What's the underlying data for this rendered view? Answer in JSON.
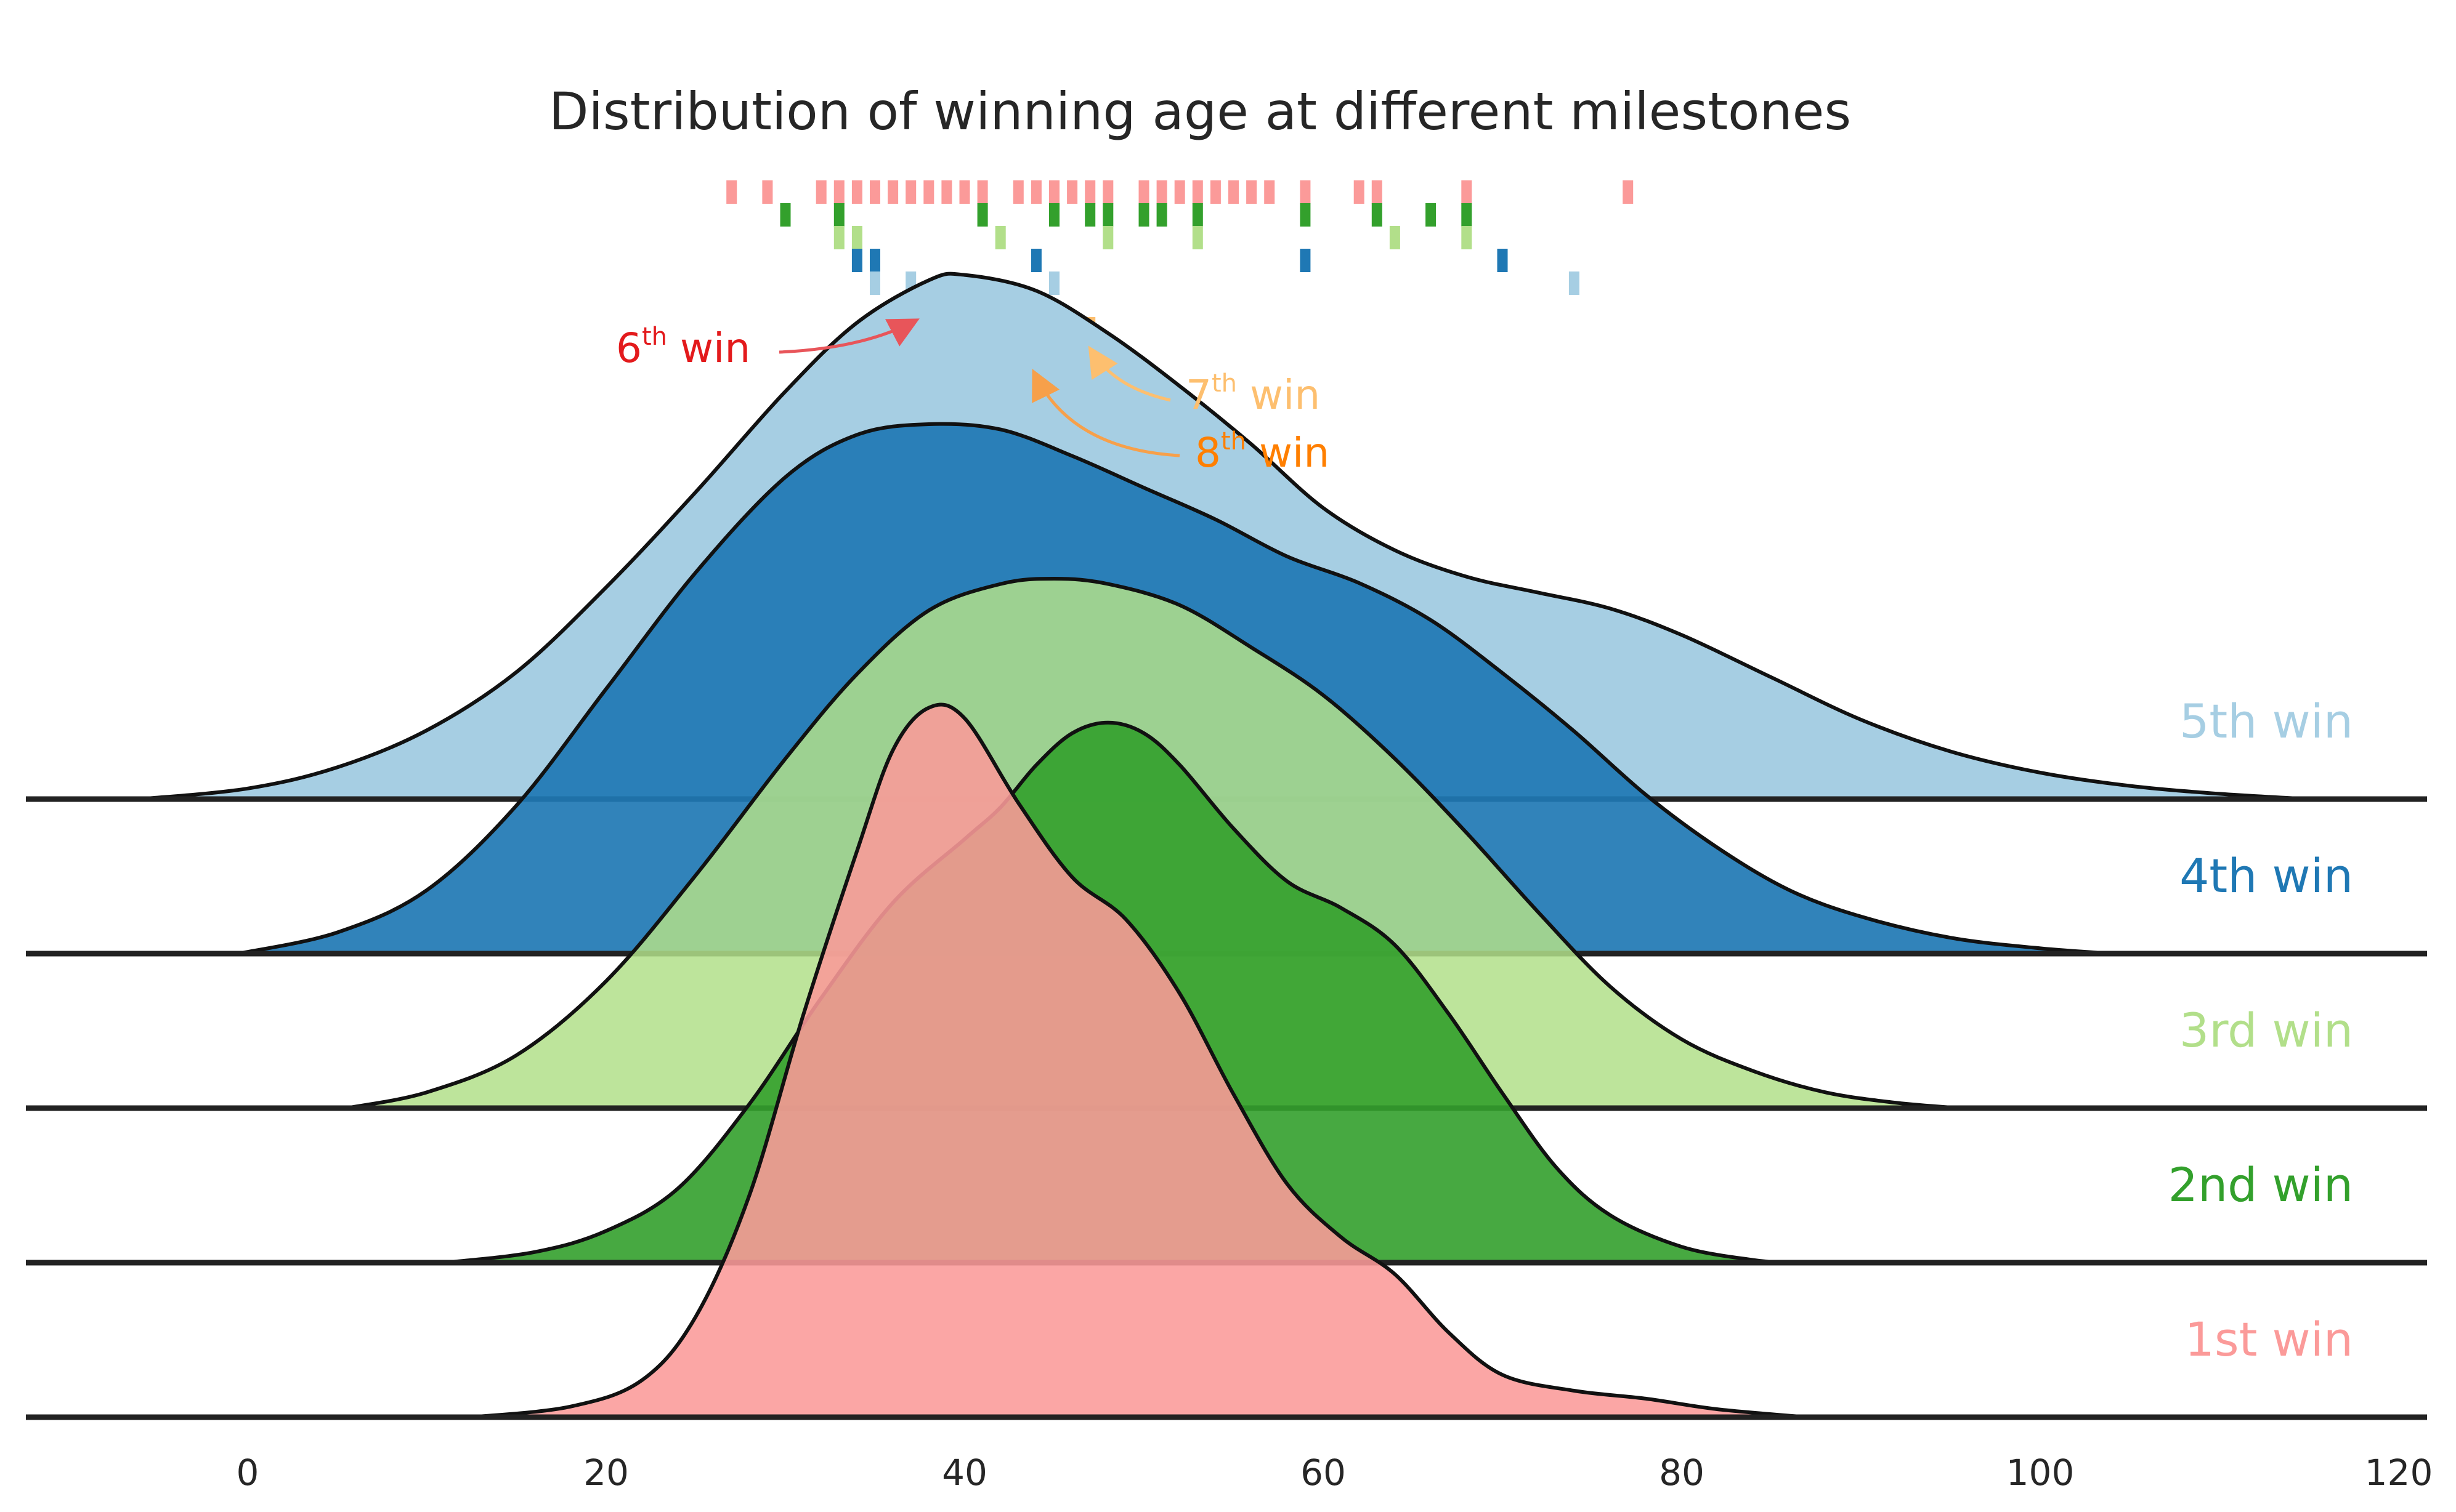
{
  "chart_data": {
    "type": "ridgeline",
    "title": "Distribution of winning age at different milestones",
    "xlim": [
      -12,
      120
    ],
    "xticks": [
      0,
      20,
      40,
      60,
      80,
      100,
      120
    ],
    "xtick_labels": [
      "0",
      "20",
      "40",
      "60",
      "80",
      "100",
      "120"
    ],
    "grid": false,
    "series": [
      {
        "name": "5th win",
        "color": "#a6cee3",
        "curve": [
          [
            -6,
            0.0
          ],
          [
            0,
            0.02
          ],
          [
            5,
            0.06
          ],
          [
            10,
            0.13
          ],
          [
            15,
            0.24
          ],
          [
            20,
            0.4
          ],
          [
            25,
            0.58
          ],
          [
            30,
            0.77
          ],
          [
            34,
            0.9
          ],
          [
            38,
            0.98
          ],
          [
            40,
            0.99
          ],
          [
            44,
            0.96
          ],
          [
            48,
            0.88
          ],
          [
            52,
            0.78
          ],
          [
            56,
            0.67
          ],
          [
            60,
            0.55
          ],
          [
            64,
            0.47
          ],
          [
            68,
            0.42
          ],
          [
            72,
            0.39
          ],
          [
            76,
            0.36
          ],
          [
            80,
            0.31
          ],
          [
            85,
            0.23
          ],
          [
            90,
            0.15
          ],
          [
            95,
            0.09
          ],
          [
            100,
            0.05
          ],
          [
            105,
            0.025
          ],
          [
            110,
            0.01
          ],
          [
            115,
            0.0
          ]
        ]
      },
      {
        "name": "4th win",
        "color": "#1f78b4",
        "curve": [
          [
            -0.5,
            0.0
          ],
          [
            5,
            0.04
          ],
          [
            10,
            0.12
          ],
          [
            15,
            0.28
          ],
          [
            20,
            0.5
          ],
          [
            25,
            0.72
          ],
          [
            30,
            0.9
          ],
          [
            34,
            0.98
          ],
          [
            38,
            1.0
          ],
          [
            42,
            0.99
          ],
          [
            46,
            0.94
          ],
          [
            50,
            0.88
          ],
          [
            54,
            0.82
          ],
          [
            58,
            0.75
          ],
          [
            62,
            0.7
          ],
          [
            66,
            0.63
          ],
          [
            70,
            0.53
          ],
          [
            74,
            0.42
          ],
          [
            78,
            0.3
          ],
          [
            82,
            0.2
          ],
          [
            86,
            0.12
          ],
          [
            90,
            0.07
          ],
          [
            95,
            0.03
          ],
          [
            100,
            0.01
          ],
          [
            104,
            0.0
          ]
        ]
      },
      {
        "name": "3rd win",
        "color": "#b2df8a",
        "curve": [
          [
            5.5,
            0.0
          ],
          [
            10,
            0.03
          ],
          [
            15,
            0.1
          ],
          [
            20,
            0.24
          ],
          [
            25,
            0.44
          ],
          [
            30,
            0.66
          ],
          [
            34,
            0.82
          ],
          [
            38,
            0.94
          ],
          [
            42,
            0.99
          ],
          [
            45,
            1.0
          ],
          [
            48,
            0.99
          ],
          [
            52,
            0.95
          ],
          [
            56,
            0.87
          ],
          [
            60,
            0.78
          ],
          [
            64,
            0.66
          ],
          [
            68,
            0.52
          ],
          [
            72,
            0.37
          ],
          [
            76,
            0.23
          ],
          [
            80,
            0.13
          ],
          [
            84,
            0.07
          ],
          [
            88,
            0.03
          ],
          [
            92,
            0.01
          ],
          [
            95.5,
            0.0
          ]
        ]
      },
      {
        "name": "2nd win",
        "color": "#33a02c",
        "curve": [
          [
            11,
            0.0
          ],
          [
            16,
            0.02
          ],
          [
            20,
            0.06
          ],
          [
            24,
            0.14
          ],
          [
            28,
            0.3
          ],
          [
            32,
            0.5
          ],
          [
            36,
            0.68
          ],
          [
            40,
            0.8
          ],
          [
            42,
            0.86
          ],
          [
            44,
            0.94
          ],
          [
            46,
            1.0
          ],
          [
            48,
            1.02
          ],
          [
            50,
            1.0
          ],
          [
            52,
            0.94
          ],
          [
            55,
            0.82
          ],
          [
            58,
            0.72
          ],
          [
            61,
            0.67
          ],
          [
            64,
            0.6
          ],
          [
            67,
            0.47
          ],
          [
            70,
            0.32
          ],
          [
            73,
            0.18
          ],
          [
            76,
            0.09
          ],
          [
            80,
            0.03
          ],
          [
            84,
            0.005
          ],
          [
            86,
            0.0
          ]
        ]
      },
      {
        "name": "1st win",
        "color": "#fb9a99",
        "curve": [
          [
            12.5,
            0.0
          ],
          [
            18,
            0.02
          ],
          [
            22,
            0.07
          ],
          [
            25,
            0.19
          ],
          [
            28,
            0.42
          ],
          [
            31,
            0.76
          ],
          [
            34,
            1.07
          ],
          [
            36,
            1.26
          ],
          [
            38,
            1.34
          ],
          [
            40,
            1.32
          ],
          [
            43,
            1.16
          ],
          [
            46,
            1.02
          ],
          [
            49,
            0.94
          ],
          [
            52,
            0.8
          ],
          [
            55,
            0.61
          ],
          [
            58,
            0.44
          ],
          [
            61,
            0.34
          ],
          [
            64,
            0.27
          ],
          [
            67,
            0.16
          ],
          [
            70,
            0.08
          ],
          [
            74,
            0.05
          ],
          [
            78,
            0.035
          ],
          [
            82,
            0.015
          ],
          [
            87,
            0.0
          ]
        ]
      }
    ],
    "rug": [
      {
        "color": "#fb9a99",
        "values": [
          27,
          29,
          32,
          33,
          34,
          35,
          36,
          37,
          38,
          39,
          40,
          41,
          43,
          44,
          45,
          46,
          47,
          48,
          50,
          51,
          52,
          53,
          54,
          55,
          56,
          57,
          59,
          62,
          63,
          68,
          77
        ]
      },
      {
        "color": "#33a02c",
        "values": [
          30,
          33,
          41,
          45,
          47,
          48,
          50,
          51,
          53,
          59,
          63,
          66,
          68
        ]
      },
      {
        "color": "#b2df8a",
        "values": [
          33,
          34,
          42,
          48,
          53,
          64,
          68
        ]
      },
      {
        "color": "#1f78b4",
        "values": [
          34,
          35,
          44,
          59,
          70
        ]
      },
      {
        "color": "#a6cee3",
        "values": [
          35,
          37,
          45,
          74
        ]
      },
      {
        "color": "#e31a1c",
        "values": [
          38,
          41
        ]
      },
      {
        "color": "#fdbf6f",
        "values": [
          40,
          47
        ]
      },
      {
        "color": "#ff7f00",
        "values": [
          44
        ]
      }
    ],
    "annotations": [
      {
        "base": "6",
        "sup": "th",
        "suffix": " win",
        "color": "#e31a1c",
        "target_x": 38
      },
      {
        "base": "7",
        "sup": "th",
        "suffix": " win",
        "color": "#fdbf6f",
        "target_x": 47
      },
      {
        "base": "8",
        "sup": "th",
        "suffix": " win",
        "color": "#ff7f00",
        "target_x": 44
      }
    ]
  }
}
